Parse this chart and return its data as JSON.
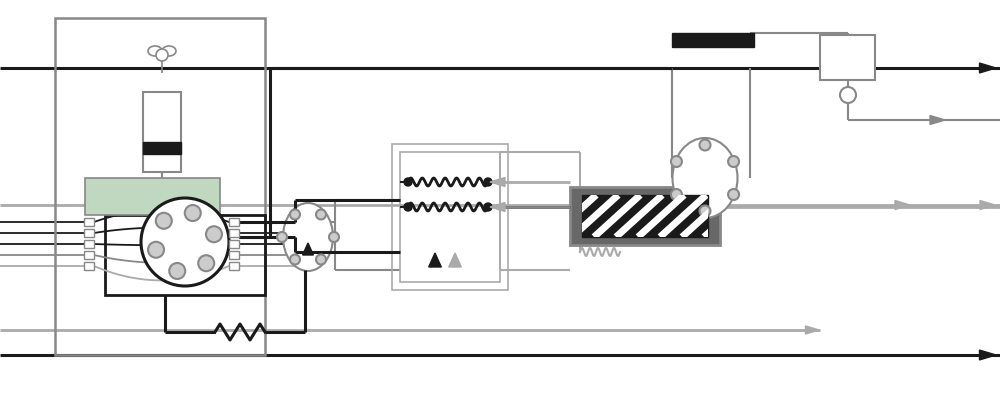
{
  "bg": "#ffffff",
  "black": "#1a1a1a",
  "dark": "#333333",
  "mid": "#666666",
  "gray": "#888888",
  "light": "#aaaaaa",
  "vlight": "#cccccc",
  "green": "#c0d8c0",
  "darkgray_fill": "#686868"
}
